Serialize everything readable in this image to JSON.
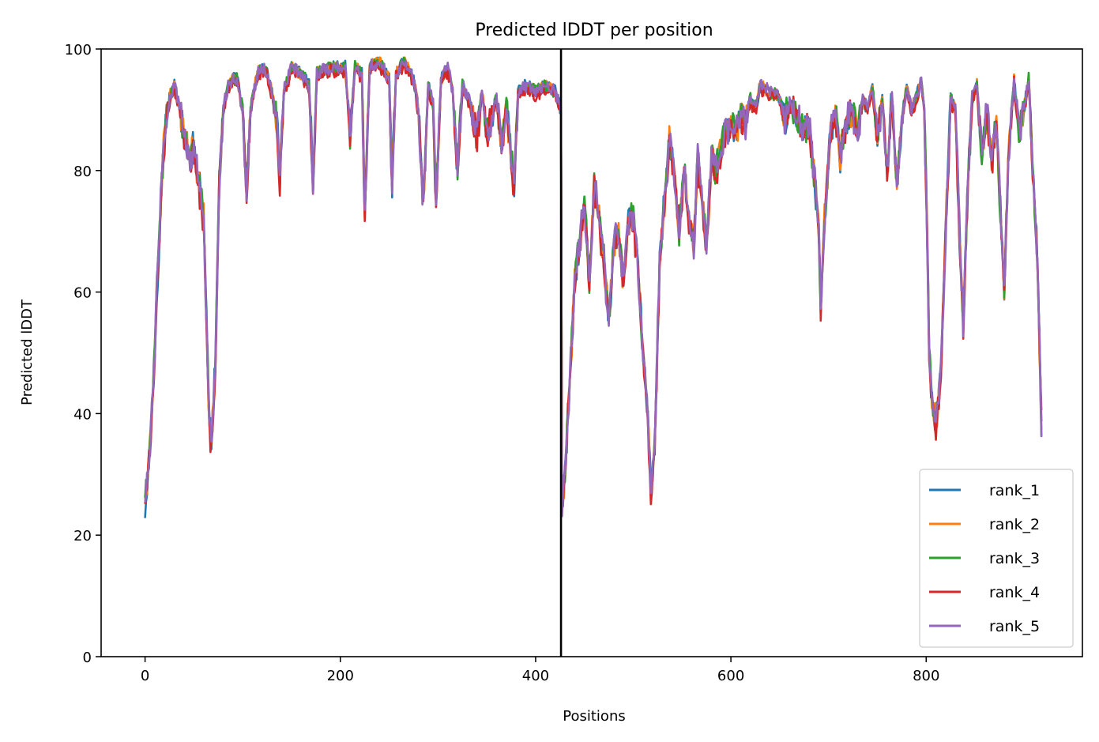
{
  "chart_data": {
    "type": "line",
    "title": "Predicted lDDT per position",
    "xlabel": "Positions",
    "ylabel": "Predicted lDDT",
    "xlim": [
      -45,
      960
    ],
    "ylim": [
      0,
      100
    ],
    "xticks": [
      0,
      200,
      400,
      600,
      800
    ],
    "yticks": [
      0,
      20,
      40,
      60,
      80,
      100
    ],
    "grid": false,
    "legend_position": "lower-right",
    "vline_x": 426,
    "x_max": 918,
    "base_profile": [
      [
        0,
        25
      ],
      [
        4,
        33
      ],
      [
        8,
        42
      ],
      [
        12,
        60
      ],
      [
        16,
        75
      ],
      [
        20,
        86
      ],
      [
        25,
        92
      ],
      [
        30,
        94
      ],
      [
        35,
        91
      ],
      [
        40,
        86
      ],
      [
        45,
        82
      ],
      [
        50,
        84
      ],
      [
        55,
        78
      ],
      [
        60,
        72
      ],
      [
        63,
        55
      ],
      [
        66,
        38
      ],
      [
        68,
        36
      ],
      [
        72,
        48
      ],
      [
        76,
        78
      ],
      [
        80,
        90
      ],
      [
        85,
        94
      ],
      [
        90,
        95
      ],
      [
        95,
        95
      ],
      [
        100,
        90
      ],
      [
        104,
        76
      ],
      [
        108,
        90
      ],
      [
        115,
        96
      ],
      [
        120,
        97
      ],
      [
        125,
        96
      ],
      [
        130,
        93
      ],
      [
        135,
        88
      ],
      [
        138,
        78
      ],
      [
        142,
        93
      ],
      [
        150,
        97
      ],
      [
        160,
        96
      ],
      [
        168,
        94
      ],
      [
        172,
        78
      ],
      [
        176,
        96
      ],
      [
        190,
        97
      ],
      [
        205,
        97
      ],
      [
        210,
        86
      ],
      [
        215,
        97
      ],
      [
        222,
        96
      ],
      [
        225,
        73
      ],
      [
        230,
        97
      ],
      [
        240,
        98
      ],
      [
        250,
        95
      ],
      [
        253,
        78
      ],
      [
        257,
        96
      ],
      [
        265,
        98
      ],
      [
        275,
        95
      ],
      [
        280,
        90
      ],
      [
        285,
        74
      ],
      [
        290,
        94
      ],
      [
        295,
        91
      ],
      [
        298,
        74
      ],
      [
        303,
        95
      ],
      [
        310,
        97
      ],
      [
        315,
        93
      ],
      [
        320,
        80
      ],
      [
        325,
        94
      ],
      [
        333,
        91
      ],
      [
        340,
        86
      ],
      [
        345,
        93
      ],
      [
        350,
        86
      ],
      [
        355,
        89
      ],
      [
        360,
        92
      ],
      [
        365,
        84
      ],
      [
        370,
        91
      ],
      [
        378,
        77
      ],
      [
        382,
        93
      ],
      [
        390,
        94
      ],
      [
        400,
        93
      ],
      [
        410,
        94
      ],
      [
        420,
        93
      ],
      [
        426,
        90
      ],
      [
        427,
        25
      ],
      [
        430,
        30
      ],
      [
        435,
        45
      ],
      [
        440,
        62
      ],
      [
        445,
        68
      ],
      [
        450,
        75
      ],
      [
        455,
        62
      ],
      [
        460,
        78
      ],
      [
        465,
        72
      ],
      [
        470,
        65
      ],
      [
        475,
        55
      ],
      [
        480,
        68
      ],
      [
        485,
        70
      ],
      [
        490,
        62
      ],
      [
        495,
        72
      ],
      [
        500,
        72
      ],
      [
        505,
        64
      ],
      [
        510,
        50
      ],
      [
        515,
        40
      ],
      [
        518,
        26
      ],
      [
        522,
        35
      ],
      [
        527,
        65
      ],
      [
        532,
        75
      ],
      [
        537,
        85
      ],
      [
        542,
        80
      ],
      [
        547,
        70
      ],
      [
        552,
        80
      ],
      [
        557,
        72
      ],
      [
        562,
        68
      ],
      [
        566,
        82
      ],
      [
        570,
        76
      ],
      [
        575,
        68
      ],
      [
        580,
        82
      ],
      [
        585,
        80
      ],
      [
        590,
        84
      ],
      [
        595,
        86
      ],
      [
        600,
        88
      ],
      [
        605,
        86
      ],
      [
        610,
        90
      ],
      [
        615,
        88
      ],
      [
        620,
        92
      ],
      [
        625,
        90
      ],
      [
        630,
        94
      ],
      [
        640,
        93
      ],
      [
        650,
        92
      ],
      [
        655,
        88
      ],
      [
        660,
        91
      ],
      [
        670,
        88
      ],
      [
        680,
        87
      ],
      [
        685,
        80
      ],
      [
        690,
        70
      ],
      [
        692,
        58
      ],
      [
        697,
        75
      ],
      [
        702,
        86
      ],
      [
        707,
        90
      ],
      [
        712,
        82
      ],
      [
        718,
        88
      ],
      [
        724,
        90
      ],
      [
        730,
        86
      ],
      [
        735,
        92
      ],
      [
        740,
        90
      ],
      [
        745,
        94
      ],
      [
        750,
        85
      ],
      [
        755,
        92
      ],
      [
        760,
        80
      ],
      [
        765,
        92
      ],
      [
        770,
        78
      ],
      [
        775,
        88
      ],
      [
        780,
        94
      ],
      [
        785,
        90
      ],
      [
        790,
        92
      ],
      [
        795,
        95
      ],
      [
        798,
        90
      ],
      [
        801,
        70
      ],
      [
        803,
        50
      ],
      [
        806,
        42
      ],
      [
        810,
        38
      ],
      [
        815,
        47
      ],
      [
        820,
        70
      ],
      [
        825,
        92
      ],
      [
        830,
        90
      ],
      [
        835,
        65
      ],
      [
        838,
        55
      ],
      [
        842,
        75
      ],
      [
        847,
        92
      ],
      [
        852,
        94
      ],
      [
        857,
        83
      ],
      [
        862,
        90
      ],
      [
        867,
        82
      ],
      [
        872,
        88
      ],
      [
        877,
        70
      ],
      [
        880,
        60
      ],
      [
        884,
        82
      ],
      [
        890,
        95
      ],
      [
        895,
        86
      ],
      [
        900,
        90
      ],
      [
        905,
        95
      ],
      [
        910,
        78
      ],
      [
        914,
        65
      ],
      [
        918,
        38
      ]
    ],
    "series": [
      {
        "name": "rank_1",
        "color": "#1f77b4"
      },
      {
        "name": "rank_2",
        "color": "#ff7f0e"
      },
      {
        "name": "rank_3",
        "color": "#2ca02c"
      },
      {
        "name": "rank_4",
        "color": "#d62728"
      },
      {
        "name": "rank_5",
        "color": "#9467bd"
      }
    ]
  }
}
